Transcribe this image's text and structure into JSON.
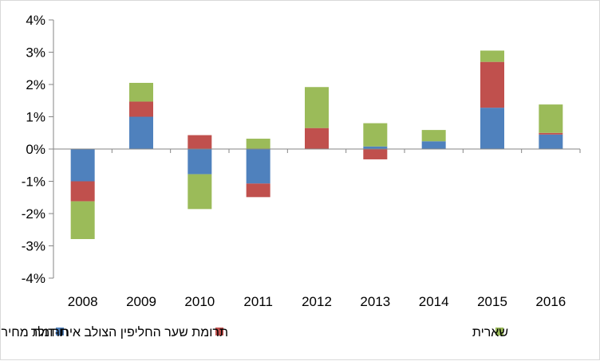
{
  "chart_data": {
    "type": "bar",
    "stacked": true,
    "categories": [
      "2008",
      "2009",
      "2010",
      "2011",
      "2012",
      "2013",
      "2014",
      "2015",
      "2016"
    ],
    "series": [
      {
        "name": "תרומת מחיר הנפט",
        "color": "#4f81bd",
        "values": [
          -1.0,
          1.0,
          -0.78,
          -1.07,
          0.0,
          0.08,
          0.24,
          1.28,
          0.45
        ]
      },
      {
        "name": "תרומת שער החליפין הצולב אירו-דולר",
        "color": "#c0504d",
        "values": [
          -0.62,
          0.47,
          0.43,
          -0.42,
          0.65,
          -0.32,
          0.0,
          1.42,
          0.05
        ]
      },
      {
        "name": "שארית",
        "color": "#9bbb59",
        "values": [
          -1.17,
          0.58,
          -1.08,
          0.32,
          1.27,
          0.72,
          0.35,
          0.35,
          0.88
        ]
      }
    ],
    "yticks": [
      "4%",
      "3%",
      "2%",
      "1%",
      "0%",
      "-1%",
      "-2%",
      "-3%",
      "-4%"
    ],
    "ylim": [
      -4,
      4
    ],
    "y_tick_step": 1,
    "grid": false,
    "legend_position": "bottom"
  }
}
